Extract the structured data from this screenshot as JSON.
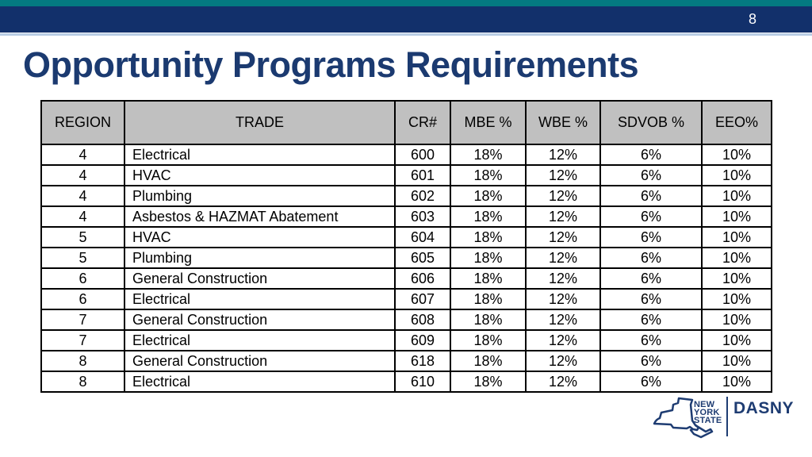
{
  "slide": {
    "page_number": "8",
    "title": "Opportunity Programs Requirements"
  },
  "table": {
    "headers": [
      "REGION",
      "TRADE",
      "CR#",
      "MBE %",
      "WBE %",
      "SDVOB %",
      "EEO%"
    ],
    "rows": [
      [
        "4",
        "Electrical",
        "600",
        "18%",
        "12%",
        "6%",
        "10%"
      ],
      [
        "4",
        "HVAC",
        "601",
        "18%",
        "12%",
        "6%",
        "10%"
      ],
      [
        "4",
        "Plumbing",
        "602",
        "18%",
        "12%",
        "6%",
        "10%"
      ],
      [
        "4",
        "Asbestos & HAZMAT Abatement",
        "603",
        "18%",
        "12%",
        "6%",
        "10%"
      ],
      [
        "5",
        "HVAC",
        "604",
        "18%",
        "12%",
        "6%",
        "10%"
      ],
      [
        "5",
        "Plumbing",
        "605",
        "18%",
        "12%",
        "6%",
        "10%"
      ],
      [
        "6",
        "General Construction",
        "606",
        "18%",
        "12%",
        "6%",
        "10%"
      ],
      [
        "6",
        "Electrical",
        "607",
        "18%",
        "12%",
        "6%",
        "10%"
      ],
      [
        "7",
        "General Construction",
        "608",
        "18%",
        "12%",
        "6%",
        "10%"
      ],
      [
        "7",
        "Electrical",
        "609",
        "18%",
        "12%",
        "6%",
        "10%"
      ],
      [
        "8",
        "General Construction",
        "618",
        "18%",
        "12%",
        "6%",
        "10%"
      ],
      [
        "8",
        "Electrical",
        "610",
        "18%",
        "12%",
        "6%",
        "10%"
      ]
    ]
  },
  "logo": {
    "state_line1": "NEW",
    "state_line2": "YORK",
    "state_line3": "STATE",
    "brand": "DASNY"
  },
  "colors": {
    "teal_strip": "#047a81",
    "navy_bar": "#12306b",
    "light_rule": "#b9cde4",
    "title_text": "#1b3a70",
    "header_bg": "#c0c0c0",
    "table_border": "#000000",
    "logo_navy": "#1e3c72"
  }
}
